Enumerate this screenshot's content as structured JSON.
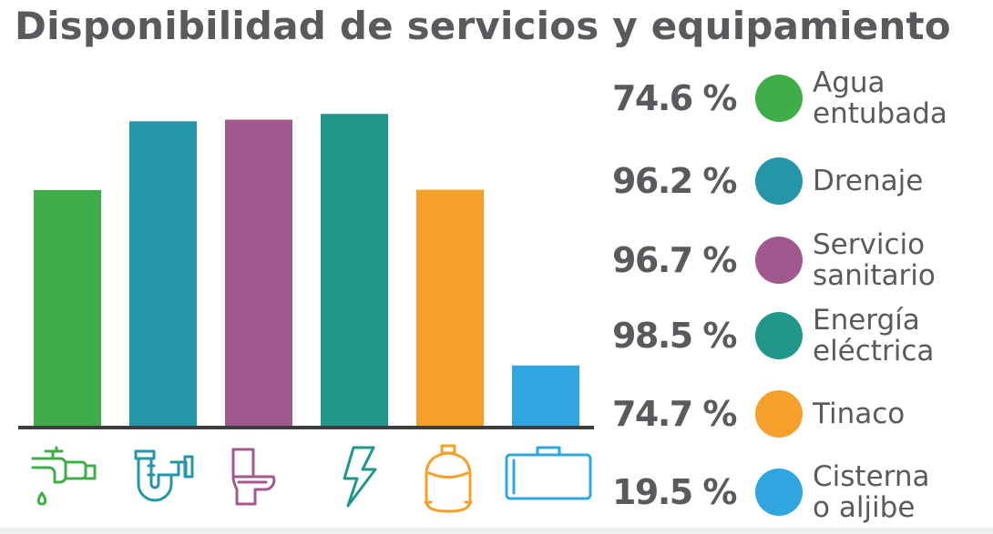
{
  "title": "Disponibilidad de servicios y equipamiento",
  "chart_data": {
    "type": "bar",
    "categories": [
      "Agua entubada",
      "Drenaje",
      "Servicio sanitario",
      "Energía eléctrica",
      "Tinaco",
      "Cisterna o aljibe"
    ],
    "values": [
      74.6,
      96.2,
      96.7,
      98.5,
      74.7,
      19.5
    ],
    "value_labels": [
      "74.6 %",
      "96.2 %",
      "96.7 %",
      "98.5 %",
      "74.7 %",
      "19.5 %"
    ],
    "label_lines": [
      [
        "Agua",
        "entubada"
      ],
      [
        "Drenaje"
      ],
      [
        "Servicio",
        "sanitario"
      ],
      [
        "Energía",
        "eléctrica"
      ],
      [
        "Tinaco"
      ],
      [
        "Cisterna",
        "o aljibe"
      ]
    ],
    "colors": [
      "#3fae49",
      "#2596a8",
      "#a0588f",
      "#21978a",
      "#f5a02a",
      "#2fa6df"
    ],
    "icons": [
      "faucet-icon",
      "drain-pipe-icon",
      "toilet-icon",
      "lightning-bolt-icon",
      "water-tank-icon",
      "cistern-icon"
    ],
    "ylim": [
      0,
      100
    ],
    "legend_position": "right",
    "grid": false
  }
}
